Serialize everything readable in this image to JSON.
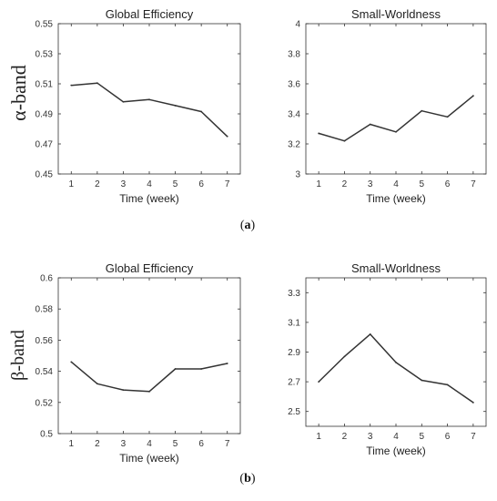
{
  "row_labels": [
    "α-band",
    "β-band"
  ],
  "captions": [
    "(a)",
    "(b)"
  ],
  "caption_letters": [
    "a",
    "b"
  ],
  "chart_data": [
    {
      "type": "line",
      "title": "Global Efficiency",
      "xlabel": "Time (week)",
      "ylabel": "α-band",
      "x": [
        1,
        2,
        3,
        4,
        5,
        6,
        7
      ],
      "xlim": [
        0.5,
        7.5
      ],
      "ylim": [
        0.45,
        0.55
      ],
      "yticks": [
        "0.45",
        "0.47",
        "0.49",
        "0.51",
        "0.53",
        "0.55"
      ],
      "series": [
        {
          "values": [
            0.509,
            0.5105,
            0.498,
            0.4995,
            0.4955,
            0.4915,
            0.475
          ]
        }
      ],
      "grid": false,
      "color": "#333333"
    },
    {
      "type": "line",
      "title": "Small-Worldness",
      "xlabel": "Time (week)",
      "ylabel": "",
      "x": [
        1,
        2,
        3,
        4,
        5,
        6,
        7
      ],
      "xlim": [
        0.5,
        7.5
      ],
      "ylim": [
        3,
        4
      ],
      "yticks": [
        "3",
        "3.2",
        "3.4",
        "3.6",
        "3.8",
        "4"
      ],
      "series": [
        {
          "values": [
            3.27,
            3.22,
            3.33,
            3.28,
            3.42,
            3.38,
            3.52
          ]
        }
      ],
      "grid": false,
      "color": "#333333"
    },
    {
      "type": "line",
      "title": "Global Efficiency",
      "xlabel": "Time (week)",
      "ylabel": "β-band",
      "x": [
        1,
        2,
        3,
        4,
        5,
        6,
        7
      ],
      "xlim": [
        0.5,
        7.5
      ],
      "ylim": [
        0.5,
        0.6
      ],
      "yticks": [
        "0.5",
        "0.52",
        "0.54",
        "0.56",
        "0.58",
        "0.6"
      ],
      "series": [
        {
          "values": [
            0.546,
            0.532,
            0.528,
            0.527,
            0.5415,
            0.5415,
            0.545
          ]
        }
      ],
      "grid": false,
      "color": "#333333"
    },
    {
      "type": "line",
      "title": "Small-Worldness",
      "xlabel": "Time (week)",
      "ylabel": "",
      "x": [
        1,
        2,
        3,
        4,
        5,
        6,
        7
      ],
      "xlim": [
        0.5,
        7.5
      ],
      "ylim": [
        2.4,
        3.4
      ],
      "yticks": [
        "2.5",
        "2.7",
        "2.9",
        "3.1",
        "3.3"
      ],
      "series": [
        {
          "values": [
            2.7,
            2.87,
            3.02,
            2.83,
            2.71,
            2.68,
            2.56
          ]
        }
      ],
      "grid": false,
      "color": "#333333"
    }
  ]
}
